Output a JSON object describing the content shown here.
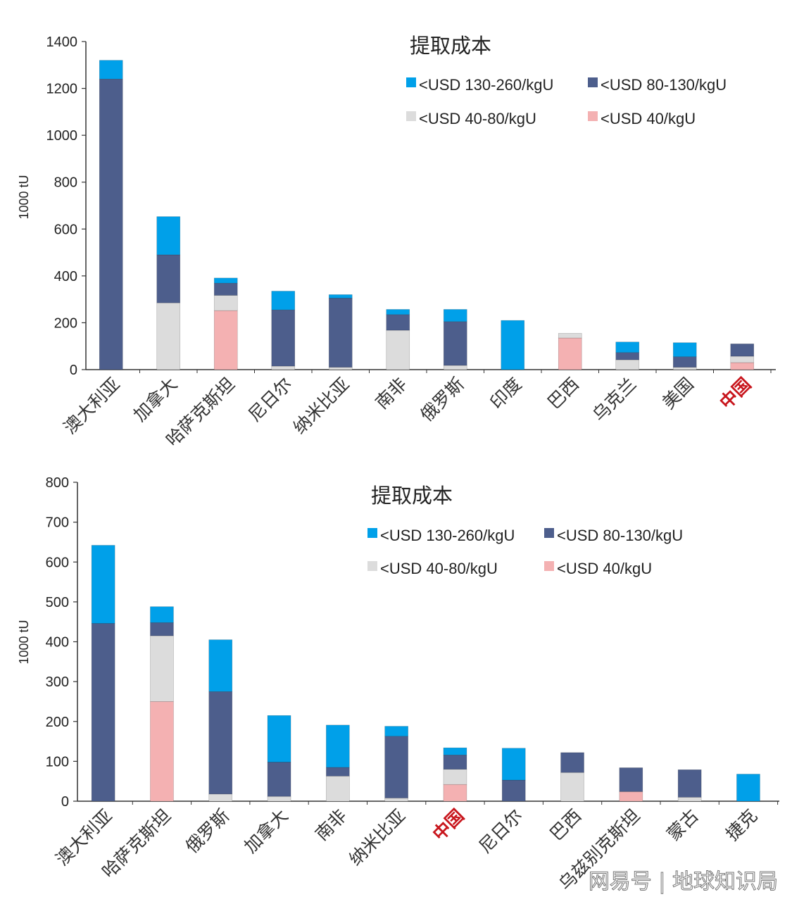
{
  "colors": {
    "c130_260": "#00a0e9",
    "c80_130": "#4d5e8c",
    "c40_80": "#dcdcdc",
    "c40": "#f4b1b2",
    "highlight": "#c8161d"
  },
  "watermark": "网易号 | 地球知识局",
  "chart_data": [
    {
      "type": "bar",
      "stacked": true,
      "title": "提取成本",
      "ylabel": "1000 tU",
      "ylim": [
        0,
        1400
      ],
      "yticks": [
        0,
        200,
        400,
        600,
        800,
        1000,
        1200,
        1400
      ],
      "categories": [
        "澳大利亚",
        "加拿大",
        "哈萨克斯坦",
        "尼日尔",
        "纳米比亚",
        "南非",
        "俄罗斯",
        "印度",
        "巴西",
        "乌克兰",
        "美国",
        "中国"
      ],
      "highlight_category": "中国",
      "series": [
        {
          "name": "<USD 40/kgU",
          "color_key": "c40",
          "values": [
            0,
            0,
            252,
            0,
            0,
            0,
            0,
            0,
            135,
            0,
            0,
            30
          ]
        },
        {
          "name": "<USD 40-80/kgU",
          "color_key": "c40_80",
          "values": [
            0,
            285,
            65,
            15,
            10,
            168,
            18,
            0,
            20,
            42,
            10,
            27
          ]
        },
        {
          "name": "<USD 80-130/kgU",
          "color_key": "c80_130",
          "values": [
            1240,
            205,
            52,
            240,
            295,
            67,
            187,
            0,
            0,
            31,
            45,
            53
          ]
        },
        {
          "name": "<USD 130-260/kgU",
          "color_key": "c130_260",
          "values": [
            80,
            163,
            22,
            80,
            15,
            22,
            52,
            210,
            0,
            45,
            60,
            0
          ]
        }
      ],
      "legend": {
        "rows": [
          [
            "<USD 130-260/kgU",
            "<USD 80-130/kgU"
          ],
          [
            "<USD 40-80/kgU",
            "<USD 40/kgU"
          ]
        ]
      }
    },
    {
      "type": "bar",
      "stacked": true,
      "title": "提取成本",
      "ylabel": "1000 tU",
      "ylim": [
        0,
        800
      ],
      "yticks": [
        0,
        100,
        200,
        300,
        400,
        500,
        600,
        700,
        800
      ],
      "categories": [
        "澳大利亚",
        "哈萨克斯坦",
        "俄罗斯",
        "加拿大",
        "南非",
        "纳米比亚",
        "中国",
        "尼日尔",
        "巴西",
        "乌兹别克斯坦",
        "蒙古",
        "捷克"
      ],
      "highlight_category": "中国",
      "series": [
        {
          "name": "<USD 40/kgU",
          "color_key": "c40",
          "values": [
            0,
            250,
            0,
            0,
            0,
            0,
            42,
            0,
            0,
            24,
            0,
            0
          ]
        },
        {
          "name": "<USD 40-80/kgU",
          "color_key": "c40_80",
          "values": [
            0,
            165,
            18,
            12,
            63,
            8,
            38,
            0,
            72,
            0,
            10,
            0
          ]
        },
        {
          "name": "<USD 80-130/kgU",
          "color_key": "c80_130",
          "values": [
            446,
            33,
            257,
            86,
            22,
            155,
            36,
            53,
            50,
            60,
            69,
            0
          ]
        },
        {
          "name": "<USD 130-260/kgU",
          "color_key": "c130_260",
          "values": [
            196,
            40,
            130,
            117,
            106,
            25,
            18,
            80,
            0,
            0,
            0,
            68
          ]
        }
      ],
      "legend": {
        "rows": [
          [
            "<USD 130-260/kgU",
            "<USD 80-130/kgU"
          ],
          [
            "<USD 40-80/kgU",
            "<USD 40/kgU"
          ]
        ]
      }
    }
  ]
}
